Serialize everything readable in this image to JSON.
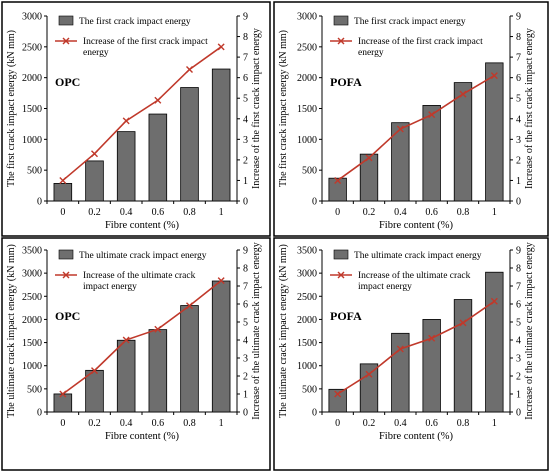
{
  "colors": {
    "bar_fill": "#6e6e6e",
    "bar_stroke": "#000000",
    "line": "#c0392b",
    "marker": "#c0392b",
    "frame": "#000000"
  },
  "chart_data": [
    {
      "type": "bar",
      "panel_label": "OPC",
      "categories": [
        "0",
        "0.2",
        "0.4",
        "0.6",
        "0.8",
        "1"
      ],
      "xlabel": "Fibre content (%)",
      "ylabel": "The first crack impact energy (kN mm)",
      "y2label": "Increase of the first crack impact energy",
      "ylim": [
        0,
        3000
      ],
      "yticks": [
        "0",
        "500",
        "1000",
        "1500",
        "2000",
        "2500",
        "3000"
      ],
      "y2lim": [
        0,
        9
      ],
      "y2ticks": [
        "0",
        "1",
        "2",
        "3",
        "4",
        "5",
        "6",
        "7",
        "8",
        "9"
      ],
      "legend_placement": "top",
      "series": [
        {
          "name": "The first crack impact energy",
          "kind": "bar",
          "axis": "left",
          "values": [
            285,
            650,
            1125,
            1410,
            1840,
            2140
          ]
        },
        {
          "name": "Increase of the first crack impact energy",
          "kind": "line",
          "axis": "right",
          "values": [
            1.0,
            2.3,
            3.9,
            4.9,
            6.4,
            7.5
          ]
        }
      ]
    },
    {
      "type": "bar",
      "panel_label": "POFA",
      "categories": [
        "0",
        "0.2",
        "0.4",
        "0.6",
        "0.8",
        "1"
      ],
      "xlabel": "Fibre content (%)",
      "ylabel": "The first crack impact energy (kN mm)",
      "y2label": "Increase of the first crack impact energy",
      "ylim": [
        0,
        3000
      ],
      "yticks": [
        "0",
        "500",
        "1000",
        "1500",
        "2000",
        "2500",
        "3000"
      ],
      "y2lim": [
        0,
        9
      ],
      "y2ticks": [
        "0",
        "1",
        "2",
        "3",
        "4",
        "5",
        "6",
        "7",
        "8",
        "9"
      ],
      "legend_placement": "top",
      "series": [
        {
          "name": "The first crack impact energy",
          "kind": "bar",
          "axis": "left",
          "values": [
            370,
            760,
            1270,
            1550,
            1920,
            2240
          ]
        },
        {
          "name": "Increase of the first crack impact energy",
          "kind": "line",
          "axis": "right",
          "values": [
            1.0,
            2.1,
            3.5,
            4.2,
            5.2,
            6.1
          ]
        }
      ]
    },
    {
      "type": "bar",
      "panel_label": "OPC",
      "categories": [
        "0",
        "0.2",
        "0.4",
        "0.6",
        "0.8",
        "1"
      ],
      "xlabel": "Fibre content (%)",
      "ylabel": "The ultimate crack impact energy (kN mm)",
      "y2label": "Increase of the ultimate crack impact energy",
      "ylim": [
        0,
        3500
      ],
      "yticks": [
        "0",
        "500",
        "1000",
        "1500",
        "2000",
        "2500",
        "3000",
        "3500"
      ],
      "y2lim": [
        0,
        9
      ],
      "y2ticks": [
        "0",
        "1",
        "2",
        "3",
        "4",
        "5",
        "6",
        "7",
        "8",
        "9"
      ],
      "legend_placement": "top",
      "series": [
        {
          "name": "The ultimate crack impact energy",
          "kind": "bar",
          "axis": "left",
          "values": [
            390,
            900,
            1550,
            1780,
            2300,
            2830
          ]
        },
        {
          "name": "Increase of the ultimate crack impact energy",
          "kind": "line",
          "axis": "right",
          "values": [
            1.0,
            2.3,
            4.0,
            4.6,
            5.9,
            7.3
          ]
        }
      ]
    },
    {
      "type": "bar",
      "panel_label": "POFA",
      "categories": [
        "0",
        "0.2",
        "0.4",
        "0.6",
        "0.8",
        "1"
      ],
      "xlabel": "Fibre content (%)",
      "ylabel": "The ultimate crack impact energy (kN mm)",
      "y2label": "Increase of the ultimate crack impact energy",
      "ylim": [
        0,
        3500
      ],
      "yticks": [
        "0",
        "500",
        "1000",
        "1500",
        "2000",
        "2500",
        "3000",
        "3500"
      ],
      "y2lim": [
        0,
        9
      ],
      "y2ticks": [
        "0",
        "1",
        "2",
        "3",
        "4",
        "5",
        "6",
        "7",
        "8",
        "9"
      ],
      "legend_placement": "top",
      "series": [
        {
          "name": "The ultimate crack impact energy",
          "kind": "bar",
          "axis": "left",
          "values": [
            490,
            1040,
            1700,
            2000,
            2430,
            3020
          ]
        },
        {
          "name": "Increase of the ultimate crack impact energy",
          "kind": "line",
          "axis": "right",
          "values": [
            1.0,
            2.1,
            3.5,
            4.1,
            4.95,
            6.15
          ]
        }
      ]
    }
  ]
}
